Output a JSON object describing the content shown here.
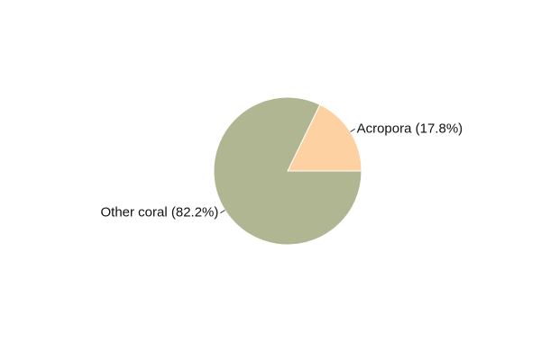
{
  "chart_data": {
    "type": "pie",
    "title": "",
    "slices": [
      {
        "label": "Acropora",
        "value": 17.8,
        "display": "Acropora (17.8%)",
        "color": "#FDD1A1"
      },
      {
        "label": "Other coral",
        "value": 82.2,
        "display": "Other coral (82.2%)",
        "color": "#B0B592"
      }
    ],
    "start_angle_deg": 0,
    "direction": "counterclockwise",
    "slice_border_color": "#ffffff",
    "legend": "none",
    "labels": "outside with leader lines"
  }
}
